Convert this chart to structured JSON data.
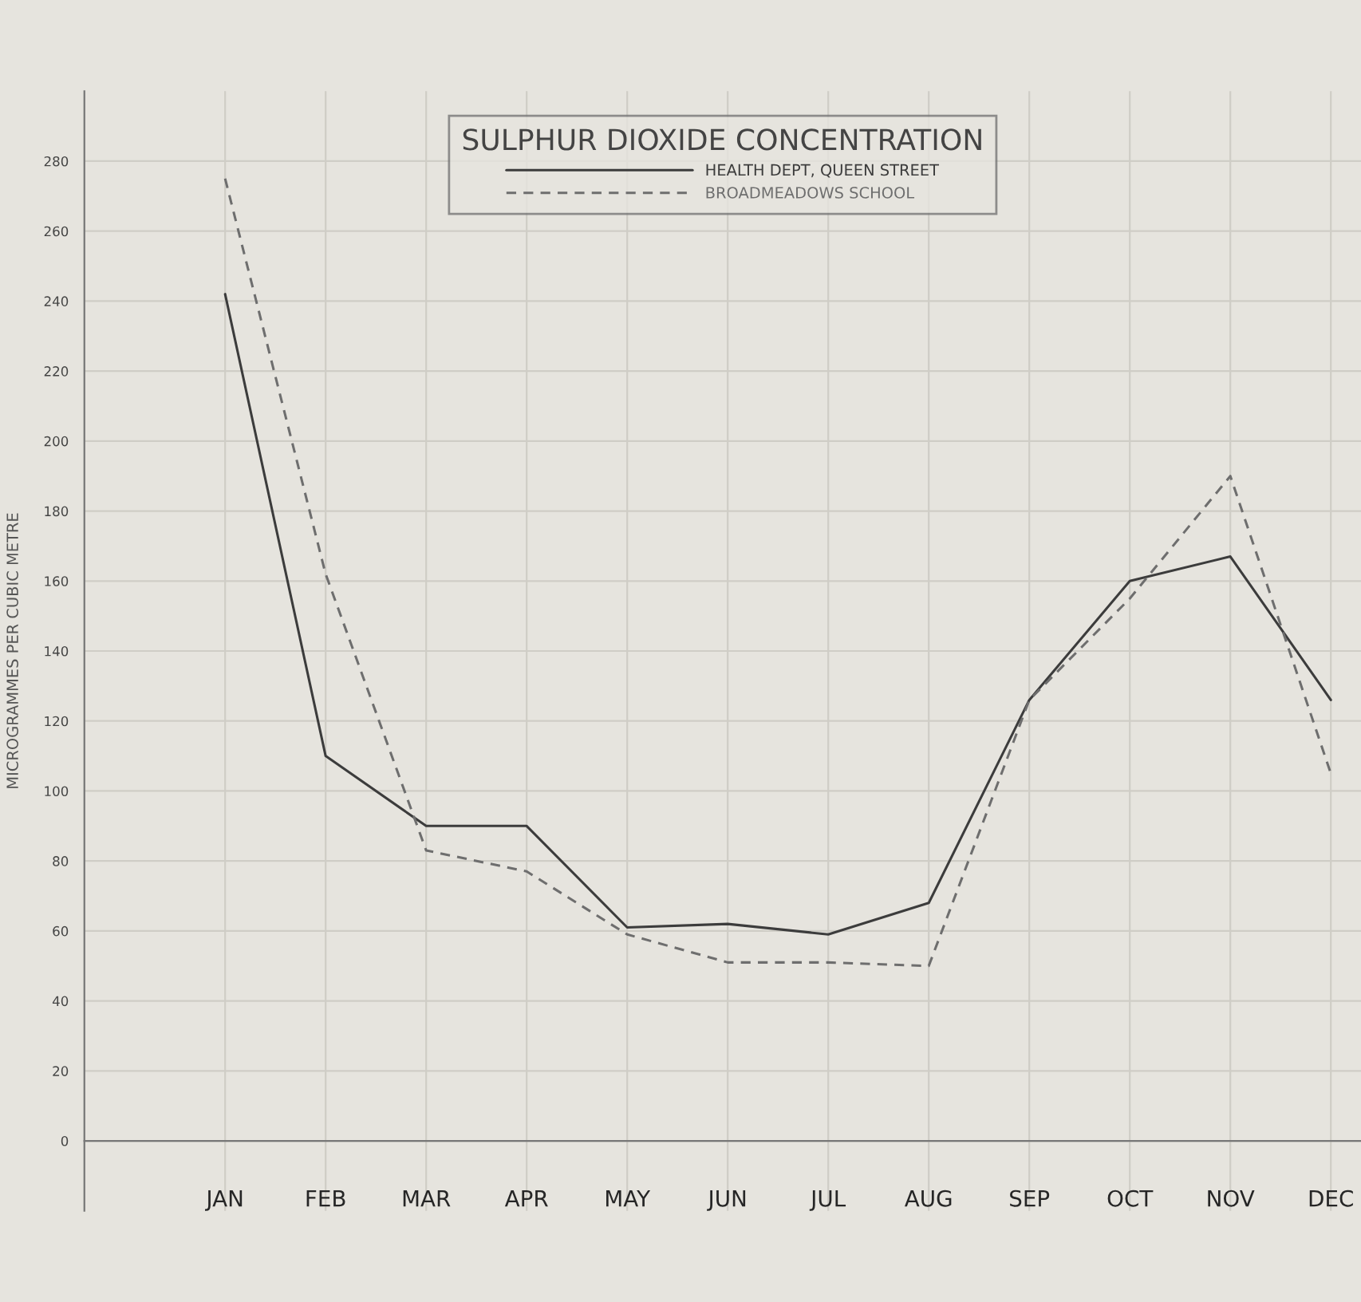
{
  "chart_data": {
    "type": "line",
    "title": "SULPHUR DIOXIDE CONCENTRATION",
    "ylabel": "MICROGRAMMES PER CUBIC METRE",
    "categories": [
      "JAN",
      "FEB",
      "MAR",
      "APR",
      "MAY",
      "JUN",
      "JUL",
      "AUG",
      "SEP",
      "OCT",
      "NOV",
      "DEC"
    ],
    "series": [
      {
        "name": "HEALTH DEPT, QUEEN STREET",
        "color": "#3c3c3c",
        "line_style": "solid",
        "values": [
          242,
          110,
          90,
          90,
          61,
          62,
          59,
          68,
          126,
          160,
          167,
          126
        ]
      },
      {
        "name": "BROADMEADOWS SCHOOL",
        "color": "#6e6e6e",
        "line_style": "dashed",
        "values": [
          275,
          162,
          83,
          77,
          59,
          51,
          51,
          50,
          126,
          155,
          190,
          105
        ]
      }
    ],
    "ylim": [
      -20,
      300
    ],
    "yticks": [
      0,
      20,
      40,
      60,
      80,
      100,
      120,
      140,
      160,
      180,
      200,
      220,
      240,
      260,
      280
    ],
    "grid": true,
    "legend": "top",
    "marker": "none"
  }
}
